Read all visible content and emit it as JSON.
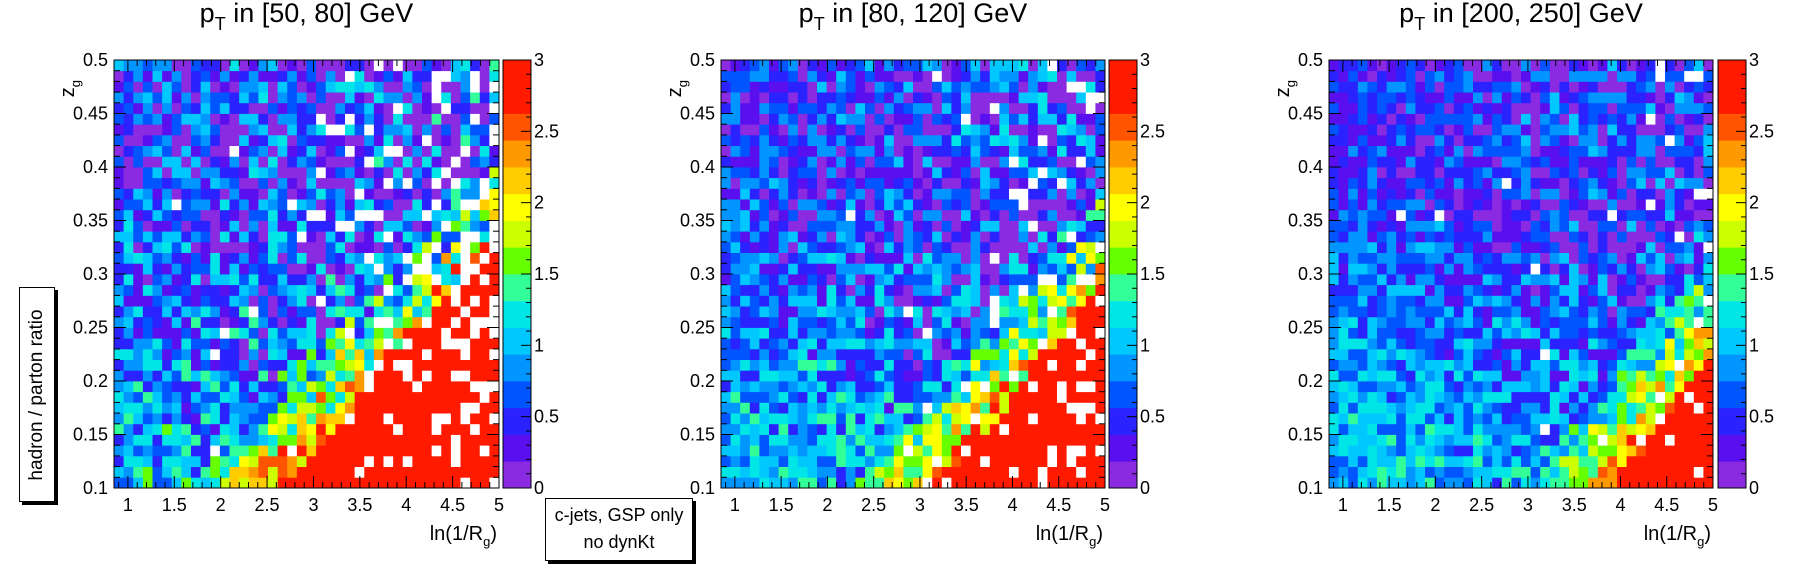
{
  "chart_data": [
    {
      "type": "heatmap",
      "title": "p_T in [50, 80] GeV",
      "title_parts": {
        "p": "p",
        "sub": "T",
        "rest": " in [50, 80] GeV"
      },
      "xlabel": "ln(1/R_g)",
      "xlabel_parts": {
        "main": "ln(1/R",
        "sub": "g",
        "close": ")"
      },
      "ylabel": "z_g",
      "ylabel_parts": {
        "main": "z",
        "sub": "g"
      },
      "xlim": [
        0.85,
        5.0
      ],
      "ylim": [
        0.1,
        0.5
      ],
      "zlim": [
        0,
        3
      ],
      "x_ticks": [
        "1",
        "1.5",
        "2",
        "2.5",
        "3",
        "3.5",
        "4",
        "4.5",
        "5"
      ],
      "y_ticks": [
        "0.1",
        "0.15",
        "0.2",
        "0.25",
        "0.3",
        "0.35",
        "0.4",
        "0.45",
        "0.5"
      ],
      "z_ticks": [
        "0",
        "0.5",
        "1",
        "1.5",
        "2",
        "2.5",
        "3"
      ],
      "bins": {
        "nx": 40,
        "ny": 40
      },
      "pattern": {
        "boundary_x": 2.2,
        "boundary_slope": 10,
        "red_cut": 0.13,
        "noise": 0.55,
        "empty_fraction": 0.12,
        "seed": 7
      }
    },
    {
      "type": "heatmap",
      "title": "p_T in [80, 120] GeV",
      "title_parts": {
        "p": "p",
        "sub": "T",
        "rest": " in [80, 120] GeV"
      },
      "xlabel": "ln(1/R_g)",
      "xlabel_parts": {
        "main": "ln(1/R",
        "sub": "g",
        "close": ")"
      },
      "ylabel": "z_g",
      "ylabel_parts": {
        "main": "z",
        "sub": "g"
      },
      "xlim": [
        0.85,
        5.0
      ],
      "ylim": [
        0.1,
        0.5
      ],
      "zlim": [
        0,
        3
      ],
      "x_ticks": [
        "1",
        "1.5",
        "2",
        "2.5",
        "3",
        "3.5",
        "4",
        "4.5",
        "5"
      ],
      "y_ticks": [
        "0.1",
        "0.15",
        "0.2",
        "0.25",
        "0.3",
        "0.35",
        "0.4",
        "0.45",
        "0.5"
      ],
      "z_ticks": [
        "0",
        "0.5",
        "1",
        "1.5",
        "2",
        "2.5",
        "3"
      ],
      "bins": {
        "nx": 40,
        "ny": 40
      },
      "pattern": {
        "boundary_x": 2.8,
        "boundary_slope": 9,
        "red_cut": 0.17,
        "noise": 0.45,
        "empty_fraction": 0.07,
        "seed": 19
      }
    },
    {
      "type": "heatmap",
      "title": "p_T in [200, 250] GeV",
      "title_parts": {
        "p": "p",
        "sub": "T",
        "rest": " in [200, 250] GeV"
      },
      "xlabel": "ln(1/R_g)",
      "xlabel_parts": {
        "main": "ln(1/R",
        "sub": "g",
        "close": ")"
      },
      "ylabel": "z_g",
      "ylabel_parts": {
        "main": "z",
        "sub": "g"
      },
      "xlim": [
        0.85,
        5.0
      ],
      "ylim": [
        0.1,
        0.5
      ],
      "zlim": [
        0,
        3
      ],
      "x_ticks": [
        "1",
        "1.5",
        "2",
        "2.5",
        "3",
        "3.5",
        "4",
        "4.5",
        "5"
      ],
      "y_ticks": [
        "0.1",
        "0.15",
        "0.2",
        "0.25",
        "0.3",
        "0.35",
        "0.4",
        "0.45",
        "0.5"
      ],
      "z_ticks": [
        "0",
        "0.5",
        "1",
        "1.5",
        "2",
        "2.5",
        "3"
      ],
      "bins": {
        "nx": 40,
        "ny": 40
      },
      "pattern": {
        "boundary_x": 3.5,
        "boundary_slope": 8,
        "red_cut": 0.2,
        "noise": 0.35,
        "empty_fraction": 0.03,
        "seed": 31
      }
    }
  ],
  "shared_ylabel": "hadron / parton ratio",
  "legend_note": {
    "line1": "c-jets, GSP only",
    "line2": "no dynKt"
  },
  "palette": [
    "#8a2be2",
    "#5a10ee",
    "#2a22ff",
    "#0055ff",
    "#0095ff",
    "#00c8ff",
    "#00e6e6",
    "#33ff99",
    "#66ff00",
    "#ccff00",
    "#ffff00",
    "#ffcc00",
    "#ff9900",
    "#ff5500",
    "#ff1a00"
  ],
  "colors": {
    "background": "#ffffff",
    "axis": "#000000",
    "overflow": "#ff1a00",
    "empty": "#ffffff"
  }
}
